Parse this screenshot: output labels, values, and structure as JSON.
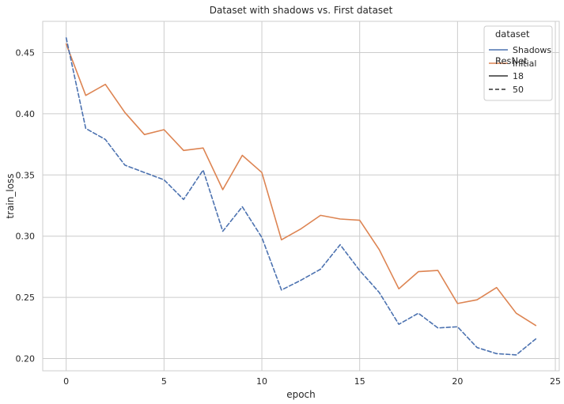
{
  "chart_data": {
    "type": "line",
    "title": "Dataset with shadows vs. First dataset",
    "xlabel": "epoch",
    "ylabel": "train_loss",
    "xlim": [
      -1.2,
      25.2
    ],
    "ylim": [
      0.19,
      0.4755
    ],
    "xticks": [
      0,
      5,
      10,
      15,
      20,
      25
    ],
    "yticks": [
      0.2,
      0.25,
      0.3,
      0.35,
      0.4,
      0.45
    ],
    "xtick_labels": [
      "0",
      "5",
      "10",
      "15",
      "20",
      "25"
    ],
    "ytick_labels": [
      "0.20",
      "0.25",
      "0.30",
      "0.35",
      "0.40",
      "0.45"
    ],
    "grid": true,
    "legend_position": "top-right",
    "legend": {
      "hue_title": "dataset",
      "hue_entries": [
        {
          "label": "Shadows",
          "color": "#4c72b0"
        },
        {
          "label": "Initial",
          "color": "#dd8452"
        }
      ],
      "style_title": "ResNet",
      "style_entries": [
        {
          "label": "18",
          "dash": "solid"
        },
        {
          "label": "50",
          "dash": "dashed"
        }
      ]
    },
    "series": [
      {
        "dataset": "Initial",
        "resnet": "18",
        "color": "#dd8452",
        "dash": "solid",
        "x": [
          0,
          1,
          2,
          3,
          4,
          5,
          6,
          7,
          8,
          9,
          10,
          11,
          12,
          13,
          14,
          15,
          16,
          17,
          18,
          19,
          20,
          21,
          22,
          23,
          24
        ],
        "values": [
          0.457,
          0.415,
          0.424,
          0.401,
          0.383,
          0.387,
          0.37,
          0.372,
          0.338,
          0.366,
          0.352,
          0.297,
          0.306,
          0.317,
          0.314,
          0.313,
          0.289,
          0.257,
          0.271,
          0.272,
          0.245,
          0.248,
          0.258,
          0.237,
          0.227
        ]
      },
      {
        "dataset": "Shadows",
        "resnet": "50",
        "color": "#4c72b0",
        "dash": "dashed",
        "x": [
          0,
          1,
          2,
          3,
          4,
          5,
          6,
          7,
          8,
          9,
          10,
          11,
          12,
          13,
          14,
          15,
          16,
          17,
          18,
          19,
          20,
          21,
          22,
          23,
          24
        ],
        "values": [
          0.462,
          0.388,
          0.379,
          0.358,
          0.352,
          0.346,
          0.33,
          0.354,
          0.304,
          0.324,
          0.299,
          0.256,
          0.264,
          0.273,
          0.293,
          0.272,
          0.254,
          0.228,
          0.237,
          0.225,
          0.226,
          0.209,
          0.204,
          0.203,
          0.216
        ]
      }
    ]
  }
}
